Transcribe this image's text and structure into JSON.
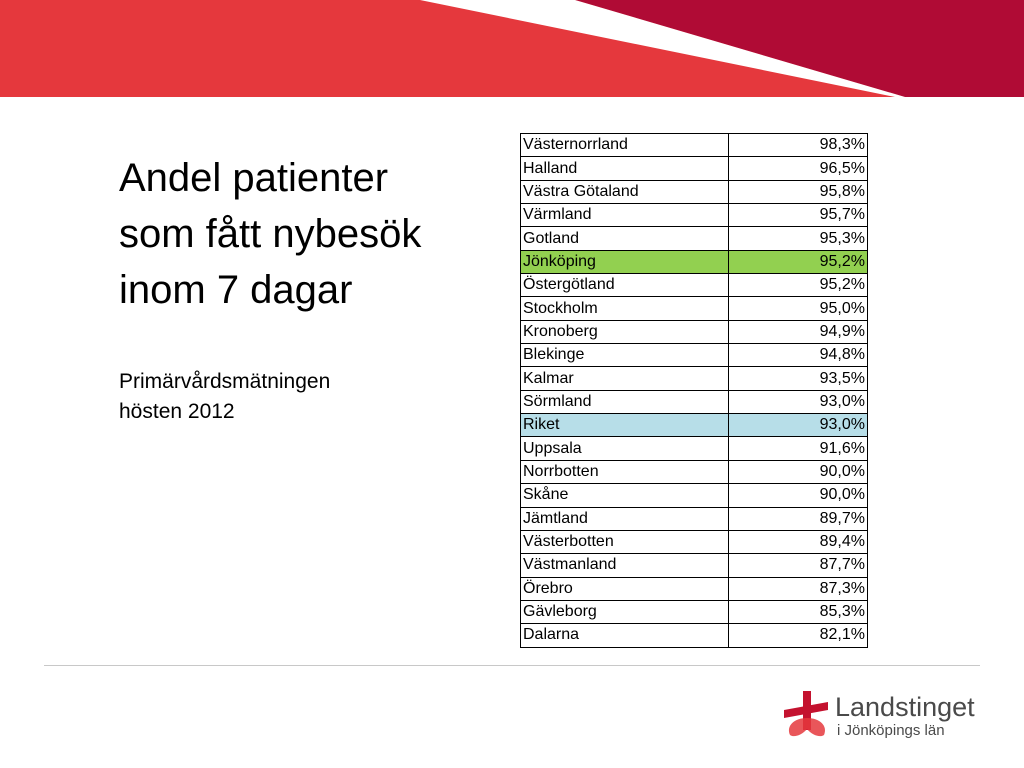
{
  "colors": {
    "banner_red": "#e5383d",
    "banner_dark": "#b00b35",
    "highlight_green": "#92d050",
    "highlight_blue": "#b7dee8"
  },
  "slide": {
    "title_lines": [
      "Andel patienter",
      "som fått nybesök",
      "inom 7 dagar"
    ],
    "subtitle_lines": [
      "Primärvårdsmätningen",
      "hösten 2012"
    ]
  },
  "table": {
    "rows": [
      {
        "region": "Västernorrland",
        "value": "98,3%"
      },
      {
        "region": "Halland",
        "value": "96,5%"
      },
      {
        "region": "Västra Götaland",
        "value": "95,8%"
      },
      {
        "region": "Värmland",
        "value": "95,7%"
      },
      {
        "region": "Gotland",
        "value": "95,3%"
      },
      {
        "region": "Jönköping",
        "value": "95,2%",
        "highlight": "green"
      },
      {
        "region": "Östergötland",
        "value": "95,2%"
      },
      {
        "region": "Stockholm",
        "value": "95,0%"
      },
      {
        "region": "Kronoberg",
        "value": "94,9%"
      },
      {
        "region": "Blekinge",
        "value": "94,8%"
      },
      {
        "region": "Kalmar",
        "value": "93,5%"
      },
      {
        "region": "Sörmland",
        "value": "93,0%"
      },
      {
        "region": "Riket",
        "value": "93,0%",
        "highlight": "blue"
      },
      {
        "region": "Uppsala",
        "value": "91,6%"
      },
      {
        "region": "Norrbotten",
        "value": "90,0%"
      },
      {
        "region": "Skåne",
        "value": "90,0%"
      },
      {
        "region": "Jämtland",
        "value": "89,7%"
      },
      {
        "region": "Västerbotten",
        "value": "89,4%"
      },
      {
        "region": "Västmanland",
        "value": "87,7%"
      },
      {
        "region": "Örebro",
        "value": "87,3%"
      },
      {
        "region": "Gävleborg",
        "value": "85,3%"
      },
      {
        "region": "Dalarna",
        "value": "82,1%"
      }
    ]
  },
  "logo": {
    "name": "Landstinget",
    "subtitle": "i Jönköpings län",
    "icon": "heart-cross-logo-icon"
  }
}
